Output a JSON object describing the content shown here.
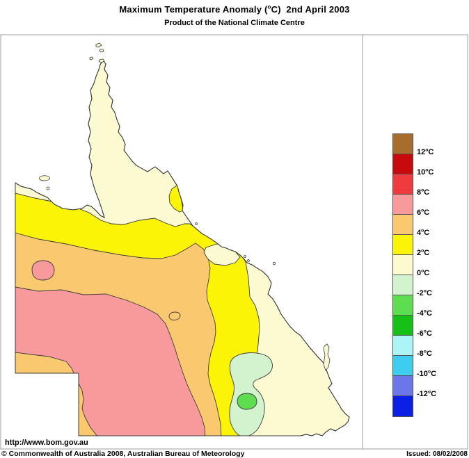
{
  "title": "Maximum Temperature Anomaly (°C)  2nd April 2003",
  "subtitle": "Product of the National Climate Centre",
  "footer": {
    "url": "http://www.bom.gov.au",
    "copyright": "© Commonwealth of Australia 2008, Australian Bureau of Meteorology",
    "issued": "Issued: 08/02/2008"
  },
  "colors": {
    "sea": "#ffffff",
    "frame": "#9c9c9c",
    "coastline": "#3a3a3a",
    "brown": "#a86d2c",
    "dark_red": "#c90a0c",
    "red": "#ef3b3d",
    "pink": "#f89a9c",
    "orange": "#fac86e",
    "yellow": "#fbf407",
    "cream": "#fbfad1",
    "pale_green": "#d3f3cf",
    "light_green": "#5fdd50",
    "green": "#16c016",
    "pale_cyan": "#acf4f6",
    "cyan": "#3ecdee",
    "blue_violet": "#6b76e8",
    "blue": "#0c20e3"
  },
  "legend": {
    "entries": [
      {
        "range_c": "above 12",
        "color_key": "brown",
        "boundary_label": "12°C"
      },
      {
        "range_c": "10 to 12",
        "color_key": "dark_red",
        "boundary_label": "10°C"
      },
      {
        "range_c": "8 to 10",
        "color_key": "red",
        "boundary_label": "8°C"
      },
      {
        "range_c": "6 to 8",
        "color_key": "pink",
        "boundary_label": "6°C"
      },
      {
        "range_c": "4 to 6",
        "color_key": "orange",
        "boundary_label": "4°C"
      },
      {
        "range_c": "2 to 4",
        "color_key": "yellow",
        "boundary_label": "2°C"
      },
      {
        "range_c": "0 to 2",
        "color_key": "cream",
        "boundary_label": "0°C"
      },
      {
        "range_c": "-2 to 0",
        "color_key": "pale_green",
        "boundary_label": "-2°C"
      },
      {
        "range_c": "-4 to -2",
        "color_key": "light_green",
        "boundary_label": "-4°C"
      },
      {
        "range_c": "-6 to -4",
        "color_key": "green",
        "boundary_label": "-6°C"
      },
      {
        "range_c": "-8 to -6",
        "color_key": "pale_cyan",
        "boundary_label": "-8°C"
      },
      {
        "range_c": "-10 to -8",
        "color_key": "cyan",
        "boundary_label": "-10°C"
      },
      {
        "range_c": "-12 to -10",
        "color_key": "blue_violet",
        "boundary_label": "-12°C"
      },
      {
        "range_c": "below -12",
        "color_key": "blue",
        "boundary_label": null
      }
    ]
  },
  "map": {
    "region": "Queensland, Australia",
    "depicted_bands": [
      {
        "range_c": "0 to 2",
        "color_key": "cream",
        "where": "Cape York Peninsula, north and southeast Queensland"
      },
      {
        "range_c": "2 to 4",
        "color_key": "yellow",
        "where": "band from the western border across the centre to the east coast, plus a coastal patch near Cairns"
      },
      {
        "range_c": "4 to 6",
        "color_key": "orange",
        "where": "broad inland band south of the yellow band"
      },
      {
        "range_c": "6 to 8",
        "color_key": "pink",
        "where": "large area over the southwest interior, plus a small blob in the northwest inland"
      },
      {
        "range_c": "-2 to 0",
        "color_key": "pale_green",
        "where": "pocket in the southern inland"
      },
      {
        "range_c": "-4 to -2",
        "color_key": "light_green",
        "where": "small core inside the southern cool pocket"
      }
    ]
  }
}
